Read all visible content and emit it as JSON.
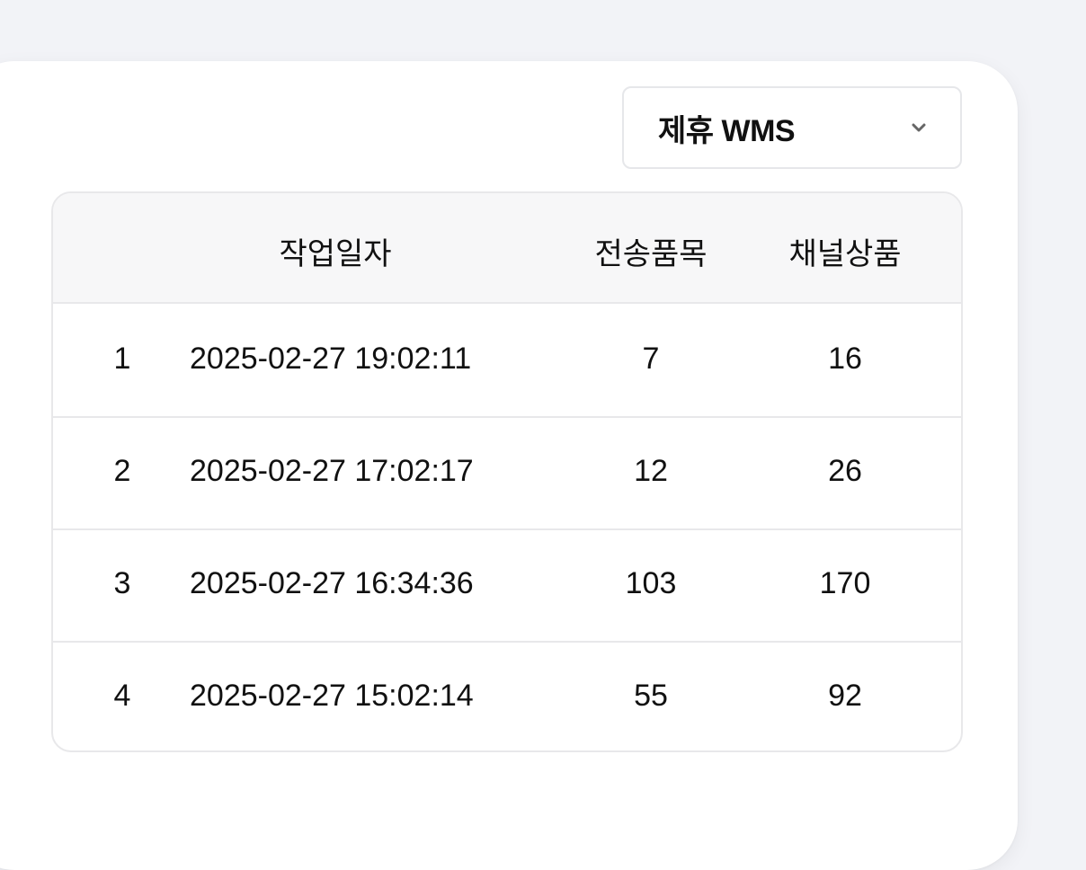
{
  "filter": {
    "selected": "제휴 WMS"
  },
  "table": {
    "headers": {
      "date": "작업일자",
      "sent_items": "전송품목",
      "channel_products": "채널상품"
    },
    "rows": [
      {
        "index": "1",
        "date": "2025-02-27 19:02:11",
        "sent_items": "7",
        "channel_products": "16"
      },
      {
        "index": "2",
        "date": "2025-02-27 17:02:17",
        "sent_items": "12",
        "channel_products": "26"
      },
      {
        "index": "3",
        "date": "2025-02-27 16:34:36",
        "sent_items": "103",
        "channel_products": "170"
      },
      {
        "index": "4",
        "date": "2025-02-27 15:02:14",
        "sent_items": "55",
        "channel_products": "92"
      }
    ]
  }
}
